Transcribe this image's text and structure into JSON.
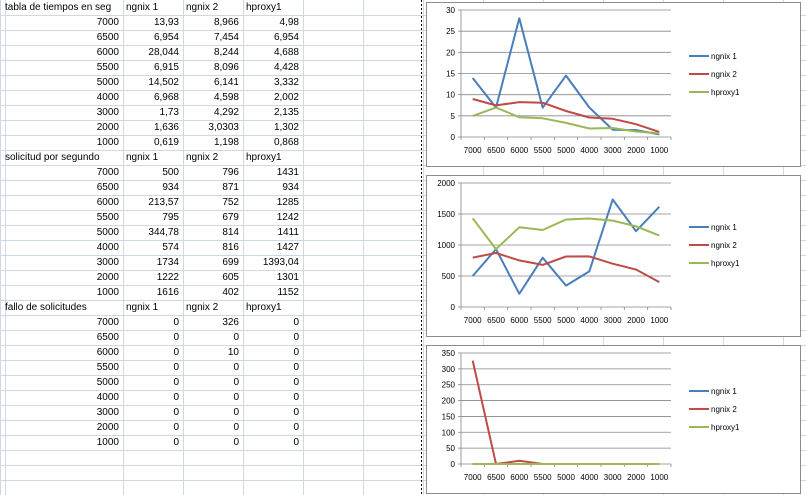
{
  "tables": [
    {
      "title": "tabla de tiempos en seg",
      "headers": [
        "ngnix 1",
        "ngnix 2",
        "hproxy1"
      ],
      "rows": [
        {
          "label": "7000",
          "values": [
            "13,93",
            "8,966",
            "4,98"
          ]
        },
        {
          "label": "6500",
          "values": [
            "6,954",
            "7,454",
            "6,954"
          ]
        },
        {
          "label": "6000",
          "values": [
            "28,044",
            "8,244",
            "4,688"
          ]
        },
        {
          "label": "5500",
          "values": [
            "6,915",
            "8,096",
            "4,428"
          ]
        },
        {
          "label": "5000",
          "values": [
            "14,502",
            "6,141",
            "3,332"
          ]
        },
        {
          "label": "4000",
          "values": [
            "6,968",
            "4,598",
            "2,002"
          ]
        },
        {
          "label": "3000",
          "values": [
            "1,73",
            "4,292",
            "2,135"
          ]
        },
        {
          "label": "2000",
          "values": [
            "1,636",
            "3,0303",
            "1,302"
          ]
        },
        {
          "label": "1000",
          "values": [
            "0,619",
            "1,198",
            "0,868"
          ]
        }
      ]
    },
    {
      "title": "solicitud por segundo",
      "headers": [
        "ngnix 1",
        "ngnix 2",
        "hproxy1"
      ],
      "rows": [
        {
          "label": "7000",
          "values": [
            "500",
            "796",
            "1431"
          ]
        },
        {
          "label": "6500",
          "values": [
            "934",
            "871",
            "934"
          ]
        },
        {
          "label": "6000",
          "values": [
            "213,57",
            "752",
            "1285"
          ]
        },
        {
          "label": "5500",
          "values": [
            "795",
            "679",
            "1242"
          ]
        },
        {
          "label": "5000",
          "values": [
            "344,78",
            "814",
            "1411"
          ]
        },
        {
          "label": "4000",
          "values": [
            "574",
            "816",
            "1427"
          ]
        },
        {
          "label": "3000",
          "values": [
            "1734",
            "699",
            "1393,04"
          ]
        },
        {
          "label": "2000",
          "values": [
            "1222",
            "605",
            "1301"
          ]
        },
        {
          "label": "1000",
          "values": [
            "1616",
            "402",
            "1152"
          ]
        }
      ]
    },
    {
      "title": "fallo de solicitudes",
      "headers": [
        "ngnix 1",
        "ngnix 2",
        "hproxy1"
      ],
      "rows": [
        {
          "label": "7000",
          "values": [
            "0",
            "326",
            "0"
          ]
        },
        {
          "label": "6500",
          "values": [
            "0",
            "0",
            "0"
          ]
        },
        {
          "label": "6000",
          "values": [
            "0",
            "10",
            "0"
          ]
        },
        {
          "label": "5500",
          "values": [
            "0",
            "0",
            "0"
          ]
        },
        {
          "label": "5000",
          "values": [
            "0",
            "0",
            "0"
          ]
        },
        {
          "label": "4000",
          "values": [
            "0",
            "0",
            "0"
          ]
        },
        {
          "label": "3000",
          "values": [
            "0",
            "0",
            "0"
          ]
        },
        {
          "label": "2000",
          "values": [
            "0",
            "0",
            "0"
          ]
        },
        {
          "label": "1000",
          "values": [
            "0",
            "0",
            "0"
          ]
        }
      ]
    }
  ],
  "colors": {
    "ngnix1": "#4a7ebb",
    "ngnix2": "#be4b48",
    "hproxy1": "#98b954",
    "gridline": "#868686",
    "cell_border": "#d0d7e5"
  },
  "chart_data": [
    {
      "type": "line",
      "categories": [
        "7000",
        "6500",
        "6000",
        "5500",
        "5000",
        "4000",
        "3000",
        "2000",
        "1000"
      ],
      "series": [
        {
          "name": "ngnix 1",
          "values": [
            13.93,
            6.954,
            28.044,
            6.915,
            14.502,
            6.968,
            1.73,
            1.636,
            0.619
          ]
        },
        {
          "name": "ngnix 2",
          "values": [
            8.966,
            7.454,
            8.244,
            8.096,
            6.141,
            4.598,
            4.292,
            3.0303,
            1.198
          ]
        },
        {
          "name": "hproxy1",
          "values": [
            4.98,
            6.954,
            4.688,
            4.428,
            3.332,
            2.002,
            2.135,
            1.302,
            0.868
          ]
        }
      ],
      "ylim": [
        0,
        30
      ],
      "yticks": [
        "0",
        "5",
        "10",
        "15",
        "20",
        "25",
        "30"
      ],
      "grid": true,
      "legend": "right"
    },
    {
      "type": "line",
      "categories": [
        "7000",
        "6500",
        "6000",
        "5500",
        "5000",
        "4000",
        "3000",
        "2000",
        "1000"
      ],
      "series": [
        {
          "name": "ngnix 1",
          "values": [
            500,
            934,
            213.57,
            795,
            344.78,
            574,
            1734,
            1222,
            1616
          ]
        },
        {
          "name": "ngnix 2",
          "values": [
            796,
            871,
            752,
            679,
            814,
            816,
            699,
            605,
            402
          ]
        },
        {
          "name": "hproxy1",
          "values": [
            1431,
            934,
            1285,
            1242,
            1411,
            1427,
            1393.04,
            1301,
            1152
          ]
        }
      ],
      "ylim": [
        0,
        2000
      ],
      "yticks": [
        "0",
        "500",
        "1000",
        "1500",
        "2000"
      ],
      "grid": true,
      "legend": "right"
    },
    {
      "type": "line",
      "categories": [
        "7000",
        "6500",
        "6000",
        "5500",
        "5000",
        "4000",
        "3000",
        "2000",
        "1000"
      ],
      "series": [
        {
          "name": "ngnix 1",
          "values": [
            0,
            0,
            0,
            0,
            0,
            0,
            0,
            0,
            0
          ]
        },
        {
          "name": "ngnix 2",
          "values": [
            326,
            0,
            10,
            0,
            0,
            0,
            0,
            0,
            0
          ]
        },
        {
          "name": "hproxy1",
          "values": [
            0,
            0,
            0,
            0,
            0,
            0,
            0,
            0,
            0
          ]
        }
      ],
      "ylim": [
        0,
        350
      ],
      "yticks": [
        "0",
        "50",
        "100",
        "150",
        "200",
        "250",
        "300",
        "350"
      ],
      "grid": true,
      "legend": "right"
    }
  ]
}
